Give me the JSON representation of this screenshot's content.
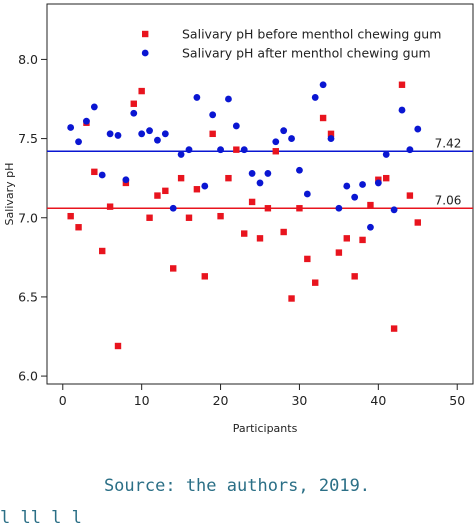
{
  "chart_data": {
    "type": "scatter",
    "title": "",
    "xlabel": "Participants",
    "ylabel": "Salivary pH",
    "xlim": [
      -2,
      52
    ],
    "ylim": [
      5.95,
      8.35
    ],
    "x_ticks": [
      0,
      10,
      20,
      30,
      40,
      50
    ],
    "y_ticks": [
      6.0,
      6.5,
      7.0,
      7.5,
      8.0
    ],
    "x_tick_labels": [
      "0",
      "10",
      "20",
      "30",
      "40",
      "50"
    ],
    "y_tick_labels": [
      "6.0",
      "6.5",
      "7.0",
      "7.5",
      "8.0"
    ],
    "grid": false,
    "legend_position": "top",
    "series": [
      {
        "name": "Salivary pH before menthol chewing gum",
        "marker": "square",
        "color": "#e8141e",
        "mean": 7.06,
        "mean_label": "7.06",
        "x": [
          1,
          2,
          3,
          4,
          5,
          6,
          7,
          8,
          9,
          10,
          11,
          12,
          13,
          14,
          15,
          16,
          17,
          18,
          19,
          20,
          21,
          22,
          23,
          24,
          25,
          26,
          27,
          28,
          29,
          30,
          31,
          32,
          33,
          34,
          35,
          36,
          37,
          38,
          39,
          40,
          41,
          42,
          43,
          44,
          45
        ],
        "y": [
          7.01,
          6.94,
          7.6,
          7.29,
          6.79,
          7.07,
          6.19,
          7.22,
          7.72,
          7.8,
          7.0,
          7.14,
          7.17,
          6.68,
          7.25,
          7.0,
          7.18,
          6.63,
          7.53,
          7.01,
          7.25,
          7.43,
          6.9,
          7.1,
          6.87,
          7.06,
          7.42,
          6.91,
          6.49,
          7.06,
          6.74,
          6.59,
          7.63,
          7.53,
          6.78,
          6.87,
          6.63,
          6.86,
          7.08,
          7.24,
          7.25,
          6.3,
          7.84,
          7.14,
          6.97
        ]
      },
      {
        "name": "Salivary pH after menthol chewing gum",
        "marker": "circle",
        "color": "#0a16d2",
        "mean": 7.42,
        "mean_label": "7.42",
        "x": [
          1,
          2,
          3,
          4,
          5,
          6,
          7,
          8,
          9,
          10,
          11,
          12,
          13,
          14,
          15,
          16,
          17,
          18,
          19,
          20,
          21,
          22,
          23,
          24,
          25,
          26,
          27,
          28,
          29,
          30,
          31,
          32,
          33,
          34,
          35,
          36,
          37,
          38,
          39,
          40,
          41,
          42,
          43,
          44,
          45
        ],
        "y": [
          7.57,
          7.48,
          7.61,
          7.7,
          7.27,
          7.53,
          7.52,
          7.24,
          7.66,
          7.53,
          7.55,
          7.49,
          7.53,
          7.06,
          7.4,
          7.43,
          7.76,
          7.2,
          7.65,
          7.43,
          7.75,
          7.58,
          7.43,
          7.28,
          7.22,
          7.28,
          7.48,
          7.55,
          7.5,
          7.3,
          7.15,
          7.76,
          7.84,
          7.5,
          7.06,
          7.2,
          7.13,
          7.21,
          6.94,
          7.22,
          7.4,
          7.05,
          7.68,
          7.43,
          7.56
        ]
      }
    ]
  },
  "source_text": "Source: the authors, 2019.",
  "cut_text": "l                   ll     l    l"
}
